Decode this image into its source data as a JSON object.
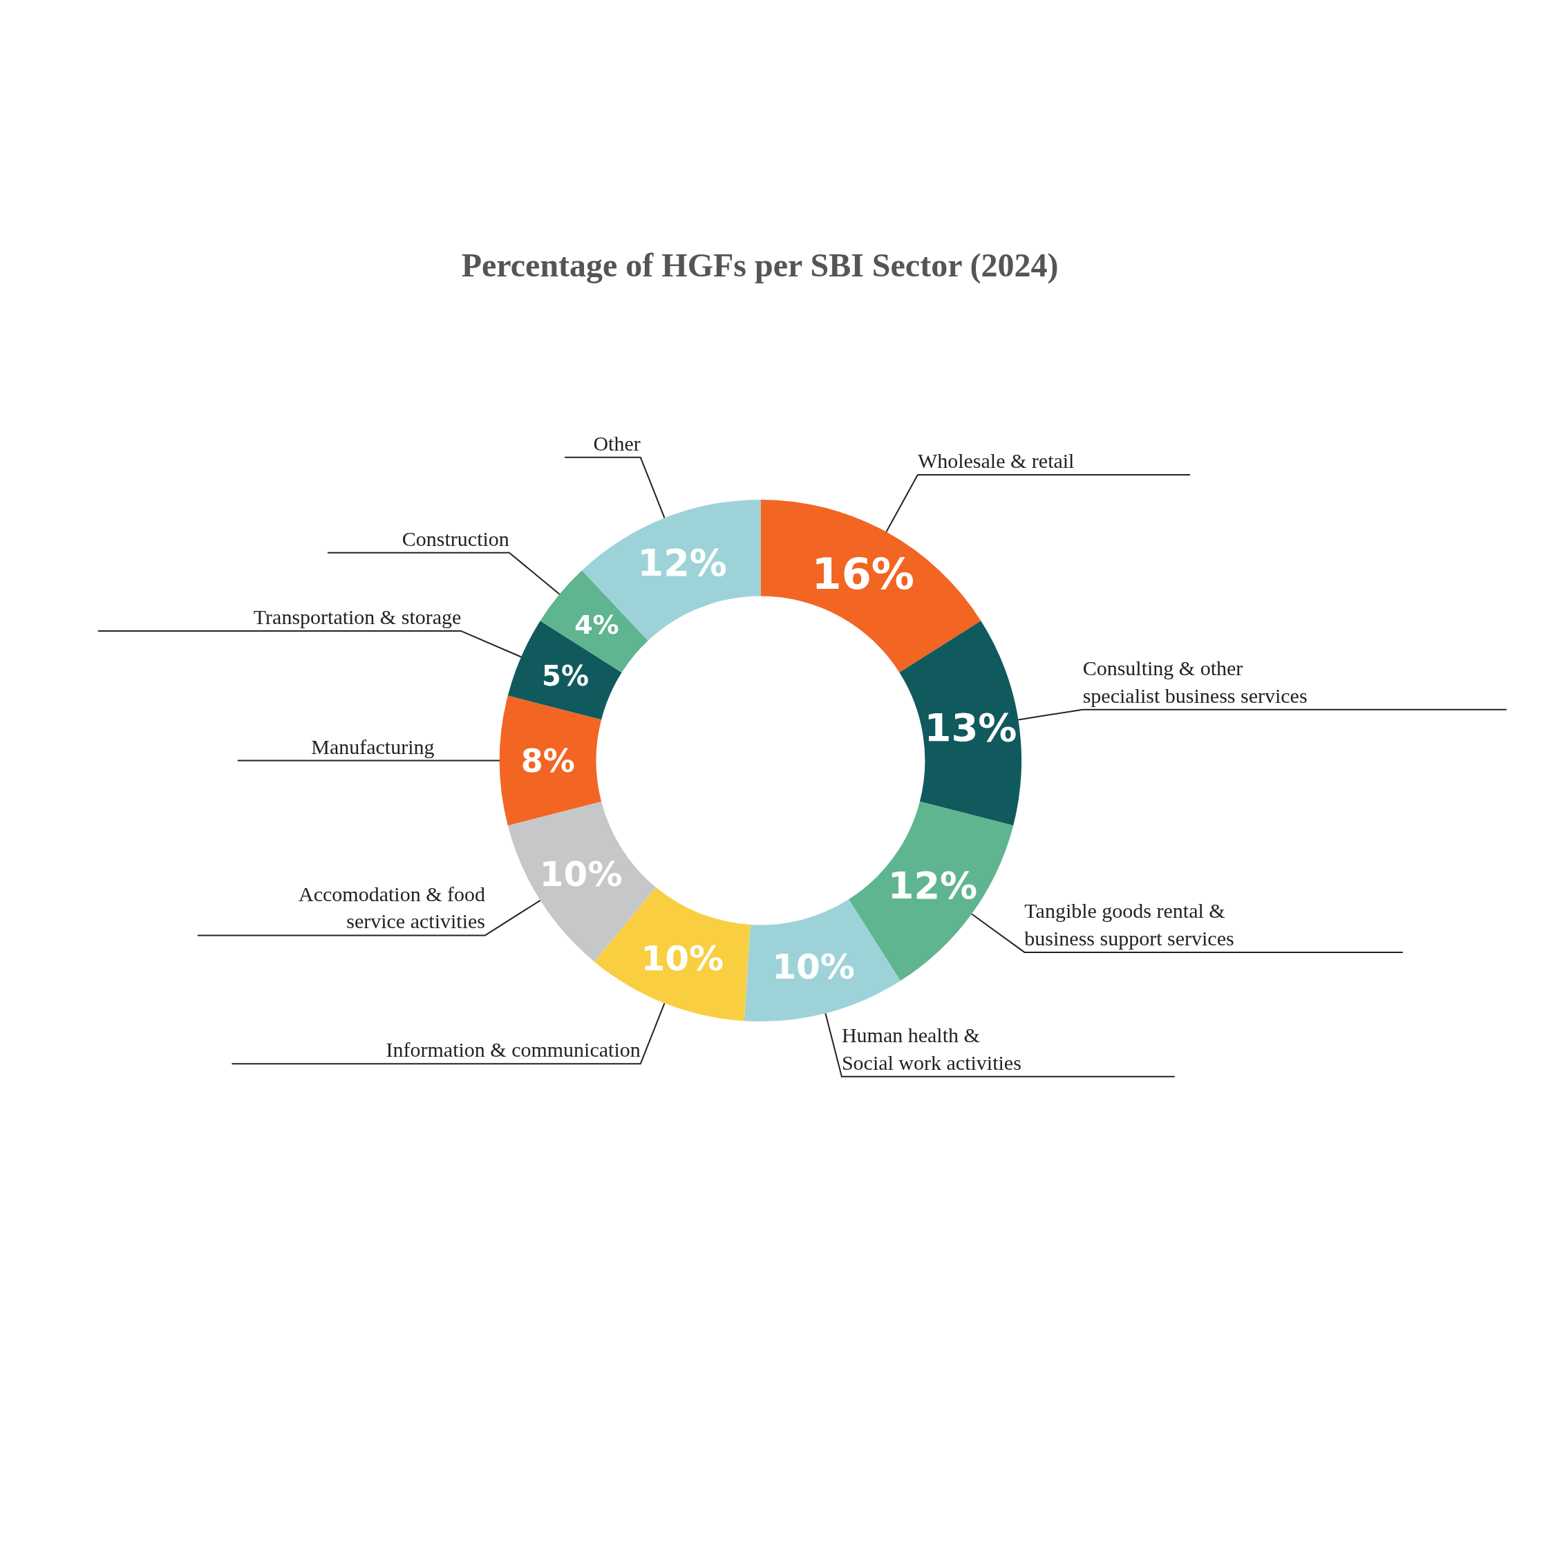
{
  "chart_data": {
    "type": "donut",
    "title": "Percentage of HGFs per SBI Sector (2024)",
    "categories": [
      "Wholesale & retail",
      "Consulting & other specialist business services",
      "Tangible goods rental & business support services",
      "Human health & Social work activities",
      "Information & communication",
      "Accomodation & food service activities",
      "Manufacturing",
      "Transportation & storage",
      "Construction",
      "Other"
    ],
    "values": [
      16,
      13,
      12,
      10,
      10,
      10,
      8,
      5,
      4,
      12
    ],
    "colors": [
      "#f26522",
      "#105a5e",
      "#5fb590",
      "#9dd3d8",
      "#f9cf41",
      "#c6c7c9",
      "#f26522",
      "#105a5e",
      "#5fb590",
      "#9dd3d8"
    ],
    "value_labels": [
      "16%",
      "13%",
      "12%",
      "10%",
      "10%",
      "10%",
      "8%",
      "5%",
      "4%",
      "12%"
    ]
  }
}
